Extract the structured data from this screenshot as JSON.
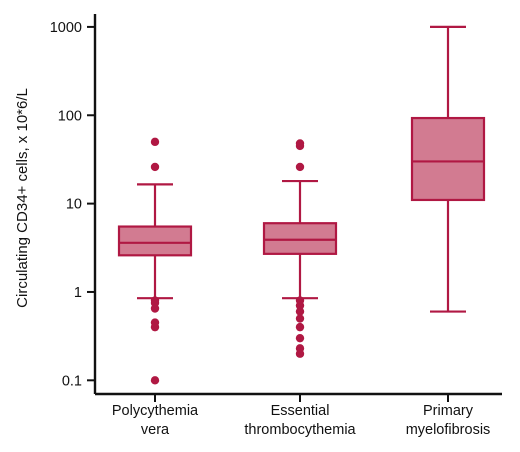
{
  "chart_data": {
    "type": "box",
    "y_scale": "log",
    "ylim": [
      0.07,
      1400
    ],
    "ylabel": "Circulating CD34+ cells, x 10*6/L",
    "y_ticks": [
      {
        "value": 0.1,
        "label": "0.1"
      },
      {
        "value": 1,
        "label": "1"
      },
      {
        "value": 10,
        "label": "10"
      },
      {
        "value": 100,
        "label": "100"
      },
      {
        "value": 1000,
        "label": "1000"
      }
    ],
    "categories": [
      {
        "key": "pv",
        "lines": [
          "Polycythemia",
          "vera"
        ]
      },
      {
        "key": "et",
        "lines": [
          "Essential",
          "thrombocythemia"
        ]
      },
      {
        "key": "pmf",
        "lines": [
          "Primary",
          "myelofibrosis"
        ]
      }
    ],
    "boxes": [
      {
        "category": "pv",
        "whisker_low": 0.85,
        "q1": 2.6,
        "median": 3.6,
        "q3": 5.5,
        "whisker_high": 16.5,
        "outliers": [
          0.1,
          0.4,
          0.45,
          0.65,
          0.75,
          0.8,
          26,
          50
        ]
      },
      {
        "category": "et",
        "whisker_low": 0.85,
        "q1": 2.7,
        "median": 3.9,
        "q3": 6.0,
        "whisker_high": 18,
        "outliers": [
          0.2,
          0.23,
          0.3,
          0.4,
          0.5,
          0.6,
          0.7,
          0.8,
          26,
          45,
          48
        ]
      },
      {
        "category": "pmf",
        "whisker_low": 0.6,
        "q1": 11,
        "median": 30,
        "q3": 93,
        "whisker_high": 1000,
        "outliers": []
      }
    ],
    "colors": {
      "box_fill": "#d27b91",
      "stroke": "#b01843",
      "axis": "#111111"
    },
    "grid": false,
    "legend": "none"
  }
}
